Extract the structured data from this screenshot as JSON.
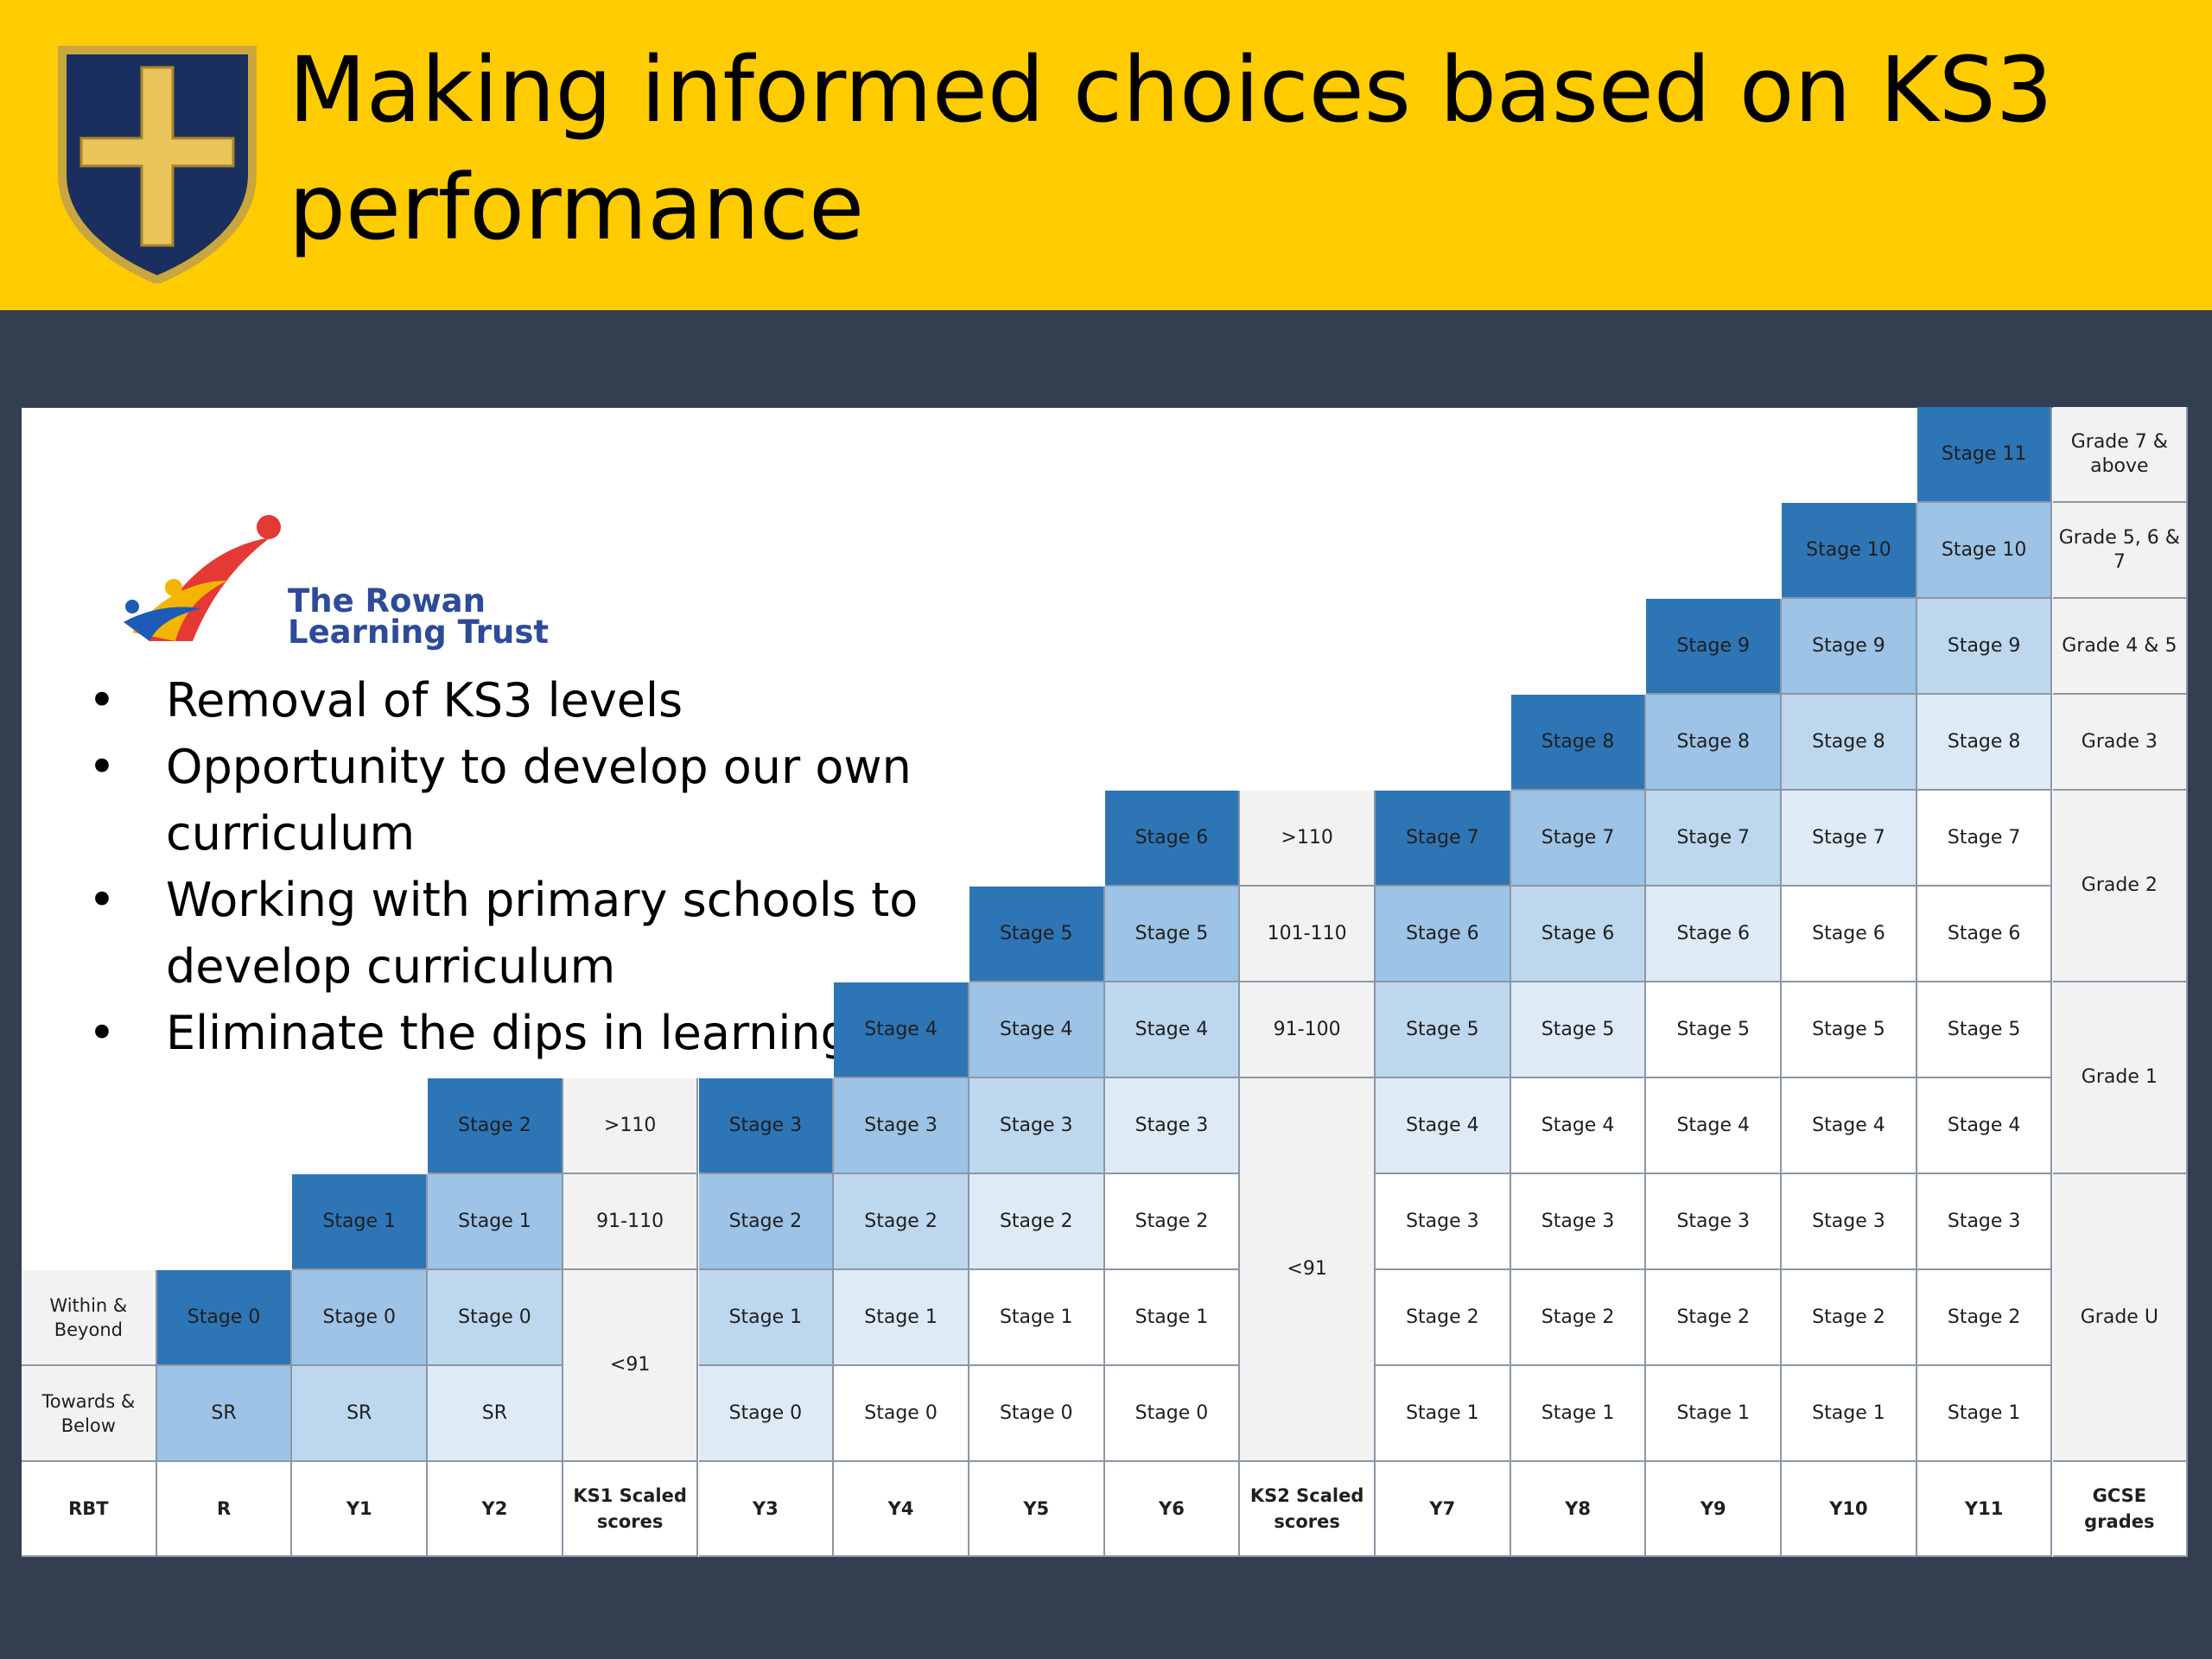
{
  "title": "Making informed choices based on KS3 performance",
  "logo": {
    "line1": "The Rowan",
    "line2": "Learning Trust"
  },
  "bullets": [
    "Removal of KS3 levels",
    "Opportunity to develop our own curriculum",
    "Working with primary schools to develop curriculum",
    "Eliminate the dips in learning"
  ],
  "colors": {
    "header": "#fecc00",
    "background": "#333f50",
    "crest_shield": "#1b2f5e",
    "crest_cross": "#e8c45a",
    "stage_shades": [
      "#2e75b6",
      "#9dc3e6",
      "#bdd7ee",
      "#deebf7",
      "#ffffff"
    ],
    "neutral_cell": "#f2f2f2"
  },
  "table": {
    "header_row": [
      "RBT",
      "R",
      "Y1",
      "Y2",
      "KS1 Scaled scores",
      "Y3",
      "Y4",
      "Y5",
      "Y6",
      "KS2 Scaled scores",
      "Y7",
      "Y8",
      "Y9",
      "Y10",
      "Y11",
      "GCSE grades"
    ],
    "side_labels": [
      "Within & Beyond",
      "Towards & Below"
    ],
    "year_columns": [
      {
        "year": "R",
        "cells": [
          "SR",
          "Stage 0"
        ]
      },
      {
        "year": "Y1",
        "cells": [
          "SR",
          "Stage 0",
          "Stage 1"
        ]
      },
      {
        "year": "Y2",
        "cells": [
          "SR",
          "Stage 0",
          "Stage 1",
          "Stage 2"
        ]
      },
      {
        "year": "Y3",
        "cells": [
          "Stage 0",
          "Stage 1",
          "Stage 2",
          "Stage 3"
        ]
      },
      {
        "year": "Y4",
        "cells": [
          "Stage 0",
          "Stage 1",
          "Stage 2",
          "Stage 3",
          "Stage 4"
        ]
      },
      {
        "year": "Y5",
        "cells": [
          "Stage 0",
          "Stage 1",
          "Stage 2",
          "Stage 3",
          "Stage 4",
          "Stage 5"
        ]
      },
      {
        "year": "Y6",
        "cells": [
          "Stage 0",
          "Stage 1",
          "Stage 2",
          "Stage 3",
          "Stage 4",
          "Stage 5",
          "Stage 6"
        ]
      },
      {
        "year": "Y7",
        "cells": [
          "Stage 1",
          "Stage 2",
          "Stage 3",
          "Stage 4",
          "Stage 5",
          "Stage 6",
          "Stage 7"
        ]
      },
      {
        "year": "Y8",
        "cells": [
          "Stage 1",
          "Stage 2",
          "Stage 3",
          "Stage 4",
          "Stage 5",
          "Stage 6",
          "Stage 7",
          "Stage 8"
        ]
      },
      {
        "year": "Y9",
        "cells": [
          "Stage 1",
          "Stage 2",
          "Stage 3",
          "Stage 4",
          "Stage 5",
          "Stage 6",
          "Stage 7",
          "Stage 8",
          "Stage 9"
        ]
      },
      {
        "year": "Y10",
        "cells": [
          "Stage 1",
          "Stage 2",
          "Stage 3",
          "Stage 4",
          "Stage 5",
          "Stage 6",
          "Stage 7",
          "Stage 8",
          "Stage 9",
          "Stage 10"
        ]
      },
      {
        "year": "Y11",
        "cells": [
          "Stage 1",
          "Stage 2",
          "Stage 3",
          "Stage 4",
          "Stage 5",
          "Stage 6",
          "Stage 7",
          "Stage 8",
          "Stage 9",
          "Stage 10",
          "Stage 11"
        ]
      }
    ],
    "ks1_scores": [
      "<91",
      "91-110",
      ">110"
    ],
    "ks2_scores": [
      "<91",
      "91-100",
      "101-110",
      ">110"
    ],
    "gcse_grades": [
      "Grade U",
      "Grade 1",
      "Grade 2",
      "Grade 3",
      "Grade 4 & 5",
      "Grade 5, 6 & 7",
      "Grade 7 & above"
    ]
  }
}
